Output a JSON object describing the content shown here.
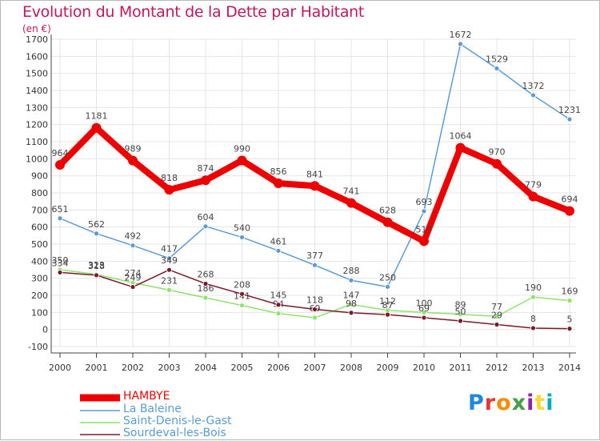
{
  "title": "Evolution du Montant de la Dette par Habitant",
  "unit": "(en €)",
  "logo": "Proxiti",
  "colors": {
    "title": "#c2185b",
    "axis": "#333333",
    "grid": "#e4e4e4"
  },
  "chart_data": {
    "type": "line",
    "title": "Evolution du Montant de la Dette par Habitant",
    "ylabel": "(en €)",
    "xlabel": "",
    "x": [
      2000,
      2001,
      2002,
      2003,
      2004,
      2005,
      2006,
      2007,
      2008,
      2009,
      2010,
      2011,
      2012,
      2013,
      2014
    ],
    "ylim": [
      -100,
      1700
    ],
    "yticks": [
      -100,
      0,
      100,
      200,
      300,
      400,
      500,
      600,
      700,
      800,
      900,
      1000,
      1100,
      1200,
      1300,
      1400,
      1500,
      1600,
      1700
    ],
    "grid": true,
    "legend": "bottom-left",
    "series": [
      {
        "name": "HAMBYE",
        "color": "#ee0000",
        "values": [
          964,
          1181,
          989,
          818,
          874,
          990,
          856,
          841,
          741,
          628,
          517,
          1064,
          970,
          779,
          694
        ]
      },
      {
        "name": "La Baleine",
        "color": "#5b9bd5",
        "values": [
          651,
          562,
          492,
          417,
          604,
          540,
          461,
          377,
          288,
          250,
          693,
          1672,
          1529,
          1372,
          1231
        ]
      },
      {
        "name": "Saint-Denis-le-Gast",
        "color": "#8ee36a",
        "values": [
          350,
          323,
          274,
          231,
          186,
          141,
          94,
          69,
          147,
          112,
          100,
          89,
          77,
          190,
          169
        ]
      },
      {
        "name": "Sourdeval-les-Bois",
        "color": "#7b1a2a",
        "values": [
          334,
          318,
          249,
          349,
          268,
          208,
          145,
          118,
          98,
          87,
          69,
          50,
          29,
          8,
          5
        ]
      }
    ]
  }
}
